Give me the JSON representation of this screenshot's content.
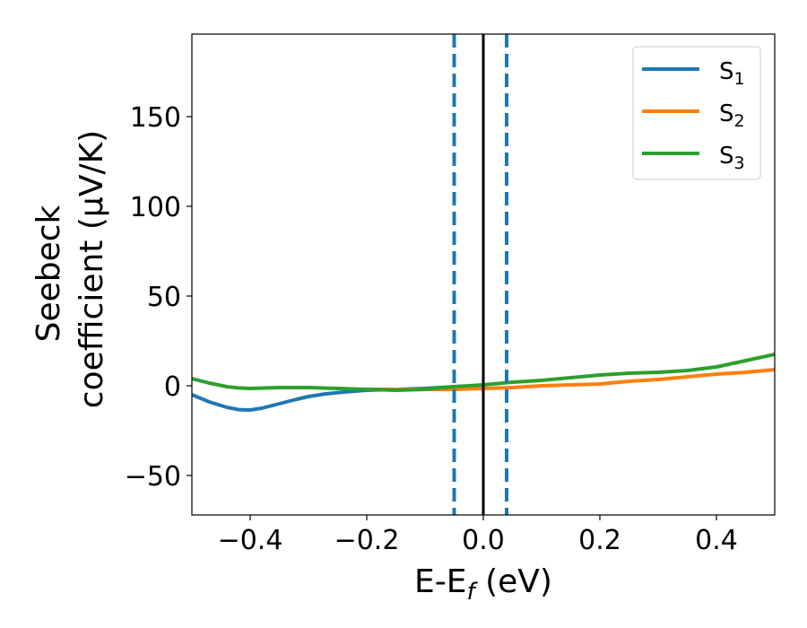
{
  "chart_data": {
    "type": "line",
    "title": "",
    "xlabel_main": "E-E",
    "xlabel_sub": "f",
    "xlabel_unit": " (eV)",
    "ylabel_line1": "Seebeck",
    "ylabel_line2": "coefficient  (μV/K)",
    "xlim": [
      -0.5,
      0.5
    ],
    "ylim": [
      -72,
      196
    ],
    "xticks": [
      -0.4,
      -0.2,
      0.0,
      0.2,
      0.4
    ],
    "xtick_labels": [
      "−0.4",
      "−0.2",
      "0.0",
      "0.2",
      "0.4"
    ],
    "yticks": [
      -50,
      0,
      50,
      100,
      150
    ],
    "ytick_labels": [
      "−50",
      "0",
      "50",
      "100",
      "150"
    ],
    "grid": false,
    "legend_position": "top-right",
    "vlines": [
      {
        "x": -0.05,
        "style": "dashed",
        "color": "#1f77b4"
      },
      {
        "x": 0.0,
        "style": "solid",
        "color": "#000000"
      },
      {
        "x": 0.04,
        "style": "dashed",
        "color": "#1f77b4"
      }
    ],
    "series": [
      {
        "name": "S",
        "subscript": "1",
        "color": "#1f77b4",
        "x": [
          -0.5,
          -0.47,
          -0.44,
          -0.42,
          -0.4,
          -0.38,
          -0.35,
          -0.32,
          -0.3,
          -0.27,
          -0.24,
          -0.2,
          -0.15,
          -0.1,
          -0.05,
          0.0
        ],
        "y": [
          -5,
          -9,
          -12,
          -13.3,
          -13.5,
          -12.5,
          -10,
          -7.5,
          -6,
          -4.5,
          -3.5,
          -2.5,
          -2,
          -1.5,
          -0.5,
          0
        ]
      },
      {
        "name": "S",
        "subscript": "2",
        "color": "#ff7f0e",
        "x": [
          -0.2,
          -0.15,
          -0.1,
          -0.05,
          0.0,
          0.05,
          0.1,
          0.15,
          0.2,
          0.25,
          0.3,
          0.35,
          0.4,
          0.45,
          0.5
        ],
        "y": [
          -2,
          -2,
          -2,
          -2,
          -1.5,
          -1,
          0,
          0.5,
          1,
          2.5,
          3.5,
          5,
          6.5,
          7.5,
          9
        ]
      },
      {
        "name": "S",
        "subscript": "3",
        "color": "#2ca02c",
        "x": [
          -0.5,
          -0.47,
          -0.44,
          -0.42,
          -0.4,
          -0.35,
          -0.3,
          -0.25,
          -0.2,
          -0.15,
          -0.1,
          -0.05,
          0.0,
          0.05,
          0.1,
          0.15,
          0.2,
          0.25,
          0.3,
          0.35,
          0.4,
          0.45,
          0.5
        ],
        "y": [
          4,
          1.5,
          -0.5,
          -1.2,
          -1.5,
          -1,
          -1,
          -1.5,
          -2,
          -2.5,
          -2,
          -0.5,
          0.5,
          2,
          3,
          4.5,
          6,
          7,
          7.5,
          8.5,
          10.5,
          14,
          17.5
        ]
      }
    ]
  }
}
